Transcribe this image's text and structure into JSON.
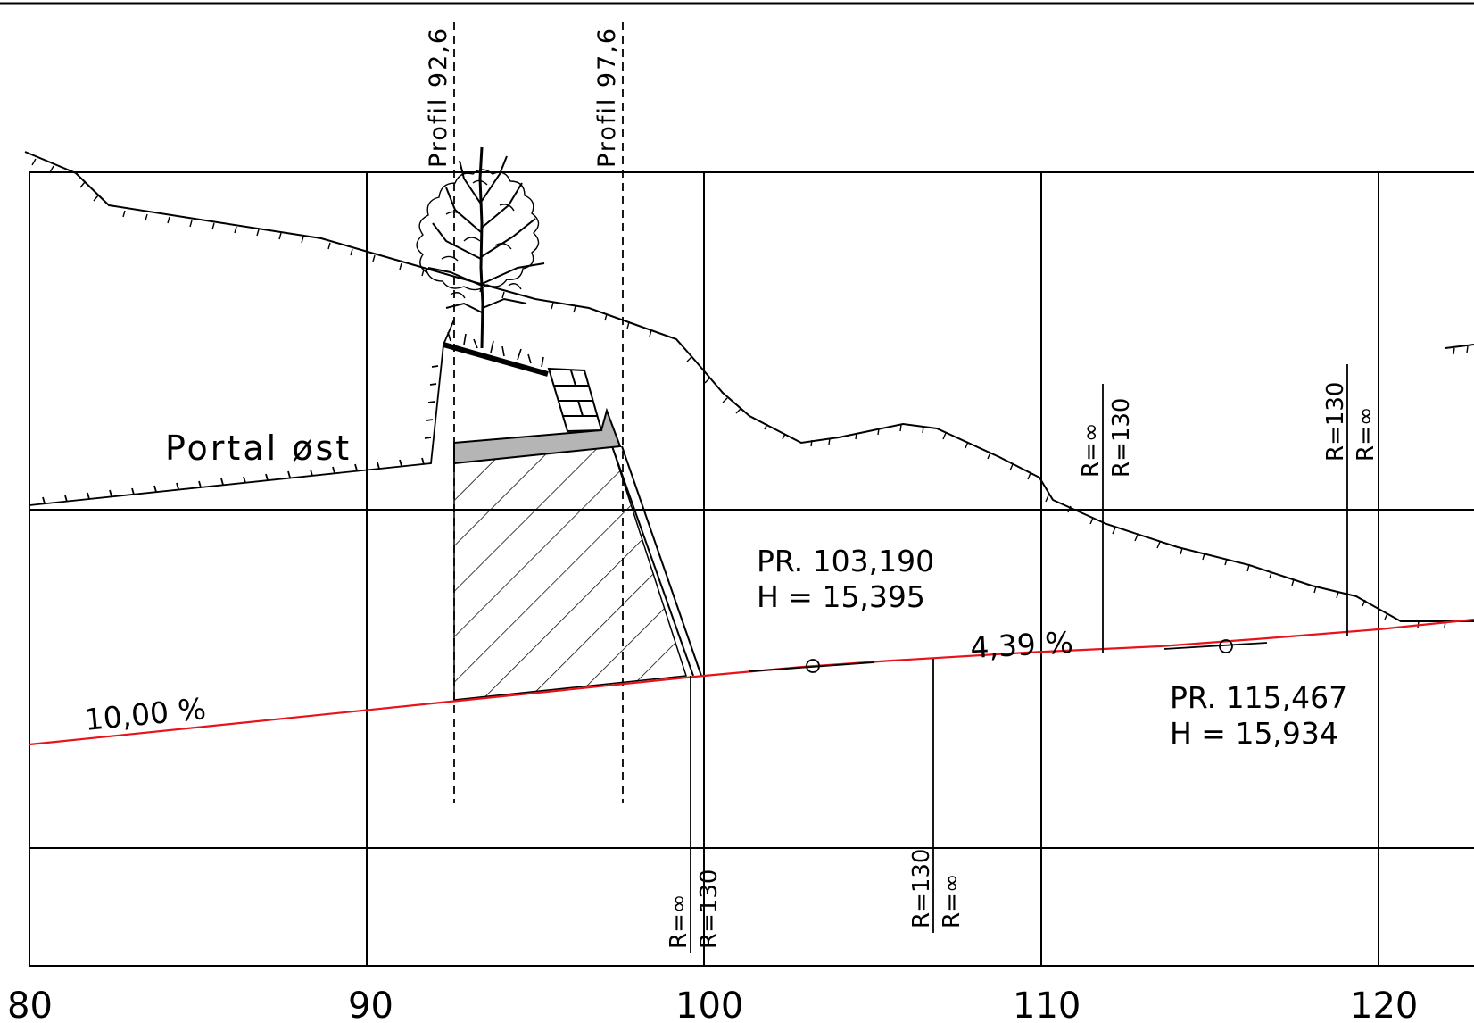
{
  "station_axis": {
    "labels": [
      "80",
      "90",
      "100",
      "110",
      "120"
    ]
  },
  "section_labels": {
    "profil_1": "Profil 92,6",
    "profil_2": "Profil 97,6"
  },
  "portal_label": "Portal øst",
  "grade_labels": {
    "left": "10,00 %",
    "right": "4,39 %"
  },
  "curve_points": [
    {
      "pr": "PR. 103,190",
      "h": "H = 15,395"
    },
    {
      "pr": "PR. 115,467",
      "h": "H = 15,934"
    }
  ],
  "radius_markers": [
    {
      "top": "R=∞",
      "bottom": "R=130"
    },
    {
      "top": "R=130",
      "bottom": "R=∞"
    },
    {
      "top": "R=∞",
      "bottom": "R=130"
    },
    {
      "top": "R=130",
      "bottom": "R=∞"
    }
  ],
  "colors": {
    "line": "#000000",
    "road_profile": "#e8121a",
    "portal_slab": "#b5b5b5"
  },
  "icons": {
    "tree": "tree-icon"
  }
}
